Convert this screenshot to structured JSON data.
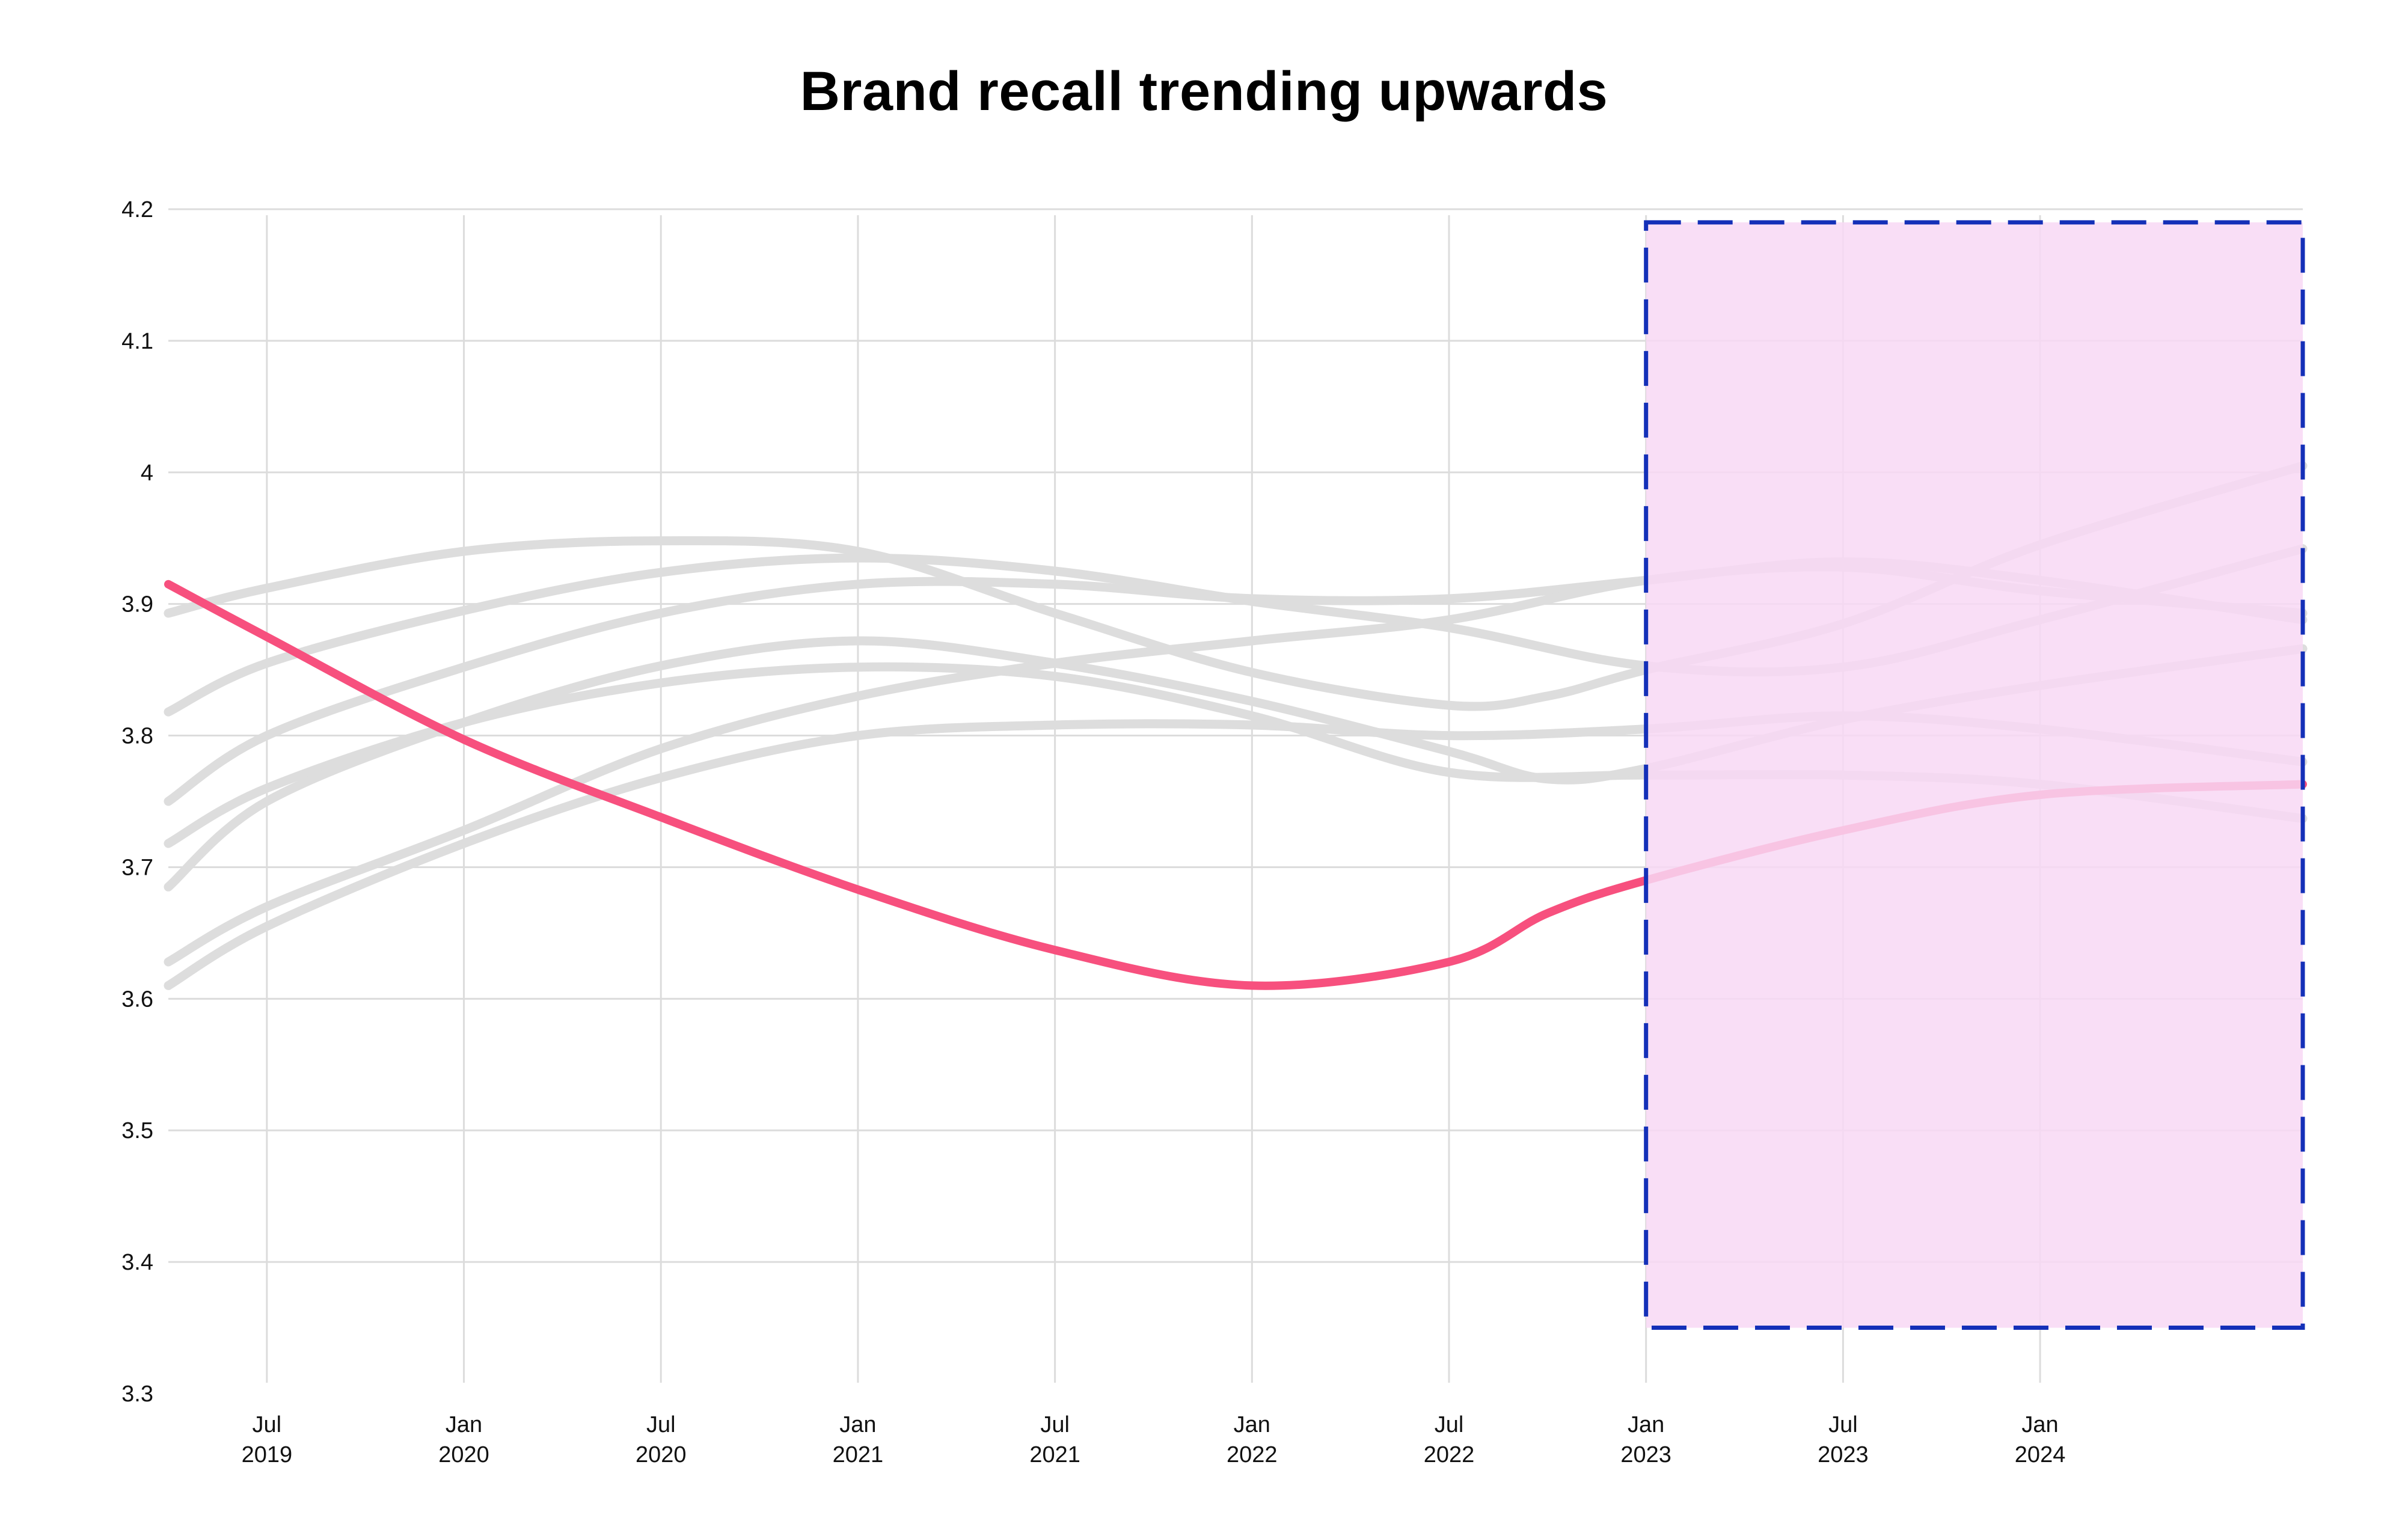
{
  "chart_data": {
    "type": "line",
    "title": "Brand recall trending upwards",
    "xlabel": "",
    "ylabel": "",
    "ylim": [
      3.3,
      4.2
    ],
    "y_ticks": [
      "3.3",
      "3.4",
      "3.5",
      "3.6",
      "3.7",
      "3.8",
      "3.9",
      "4",
      "4.1",
      "4.2"
    ],
    "y_tick_values": [
      3.3,
      3.4,
      3.5,
      3.6,
      3.7,
      3.8,
      3.9,
      4.0,
      4.1,
      4.2
    ],
    "x_range": [
      "2019-04",
      "2024-09"
    ],
    "x_ticks": [
      {
        "date": "2019-07",
        "month": "Jul",
        "year": "2019"
      },
      {
        "date": "2020-01",
        "month": "Jan",
        "year": "2020"
      },
      {
        "date": "2020-07",
        "month": "Jul",
        "year": "2020"
      },
      {
        "date": "2021-01",
        "month": "Jan",
        "year": "2021"
      },
      {
        "date": "2021-07",
        "month": "Jul",
        "year": "2021"
      },
      {
        "date": "2022-01",
        "month": "Jan",
        "year": "2022"
      },
      {
        "date": "2022-07",
        "month": "Jul",
        "year": "2022"
      },
      {
        "date": "2023-01",
        "month": "Jan",
        "year": "2023"
      },
      {
        "date": "2023-07",
        "month": "Jul",
        "year": "2023"
      },
      {
        "date": "2024-01",
        "month": "Jan",
        "year": "2024"
      }
    ],
    "grid": true,
    "legend": "none",
    "series": [
      {
        "highlighted": true,
        "color": "#f7507e",
        "points": [
          [
            "2019-04",
            3.915
          ],
          [
            "2019-07",
            3.875
          ],
          [
            "2020-01",
            3.797
          ],
          [
            "2020-07",
            3.738
          ],
          [
            "2021-01",
            3.683
          ],
          [
            "2021-07",
            3.637
          ],
          [
            "2022-01",
            3.61
          ],
          [
            "2022-07",
            3.628
          ],
          [
            "2022-10",
            3.665
          ],
          [
            "2023-01",
            3.69
          ],
          [
            "2023-07",
            3.728
          ],
          [
            "2024-01",
            3.755
          ],
          [
            "2024-09",
            3.763
          ]
        ]
      },
      {
        "color": "#dddddd",
        "points": [
          [
            "2019-04",
            3.893
          ],
          [
            "2019-07",
            3.912
          ],
          [
            "2020-01",
            3.94
          ],
          [
            "2020-07",
            3.948
          ],
          [
            "2021-01",
            3.94
          ],
          [
            "2021-07",
            3.893
          ],
          [
            "2022-01",
            3.848
          ],
          [
            "2022-07",
            3.823
          ],
          [
            "2022-10",
            3.83
          ],
          [
            "2023-01",
            3.85
          ],
          [
            "2023-07",
            3.885
          ],
          [
            "2024-01",
            3.945
          ],
          [
            "2024-09",
            4.005
          ]
        ]
      },
      {
        "color": "#dddddd",
        "points": [
          [
            "2019-04",
            3.818
          ],
          [
            "2019-07",
            3.855
          ],
          [
            "2020-01",
            3.895
          ],
          [
            "2020-07",
            3.924
          ],
          [
            "2021-01",
            3.935
          ],
          [
            "2021-07",
            3.925
          ],
          [
            "2022-01",
            3.902
          ],
          [
            "2022-07",
            3.882
          ],
          [
            "2023-01",
            3.853
          ],
          [
            "2023-07",
            3.852
          ],
          [
            "2024-01",
            3.888
          ],
          [
            "2024-09",
            3.942
          ]
        ]
      },
      {
        "color": "#dddddd",
        "points": [
          [
            "2019-04",
            3.75
          ],
          [
            "2019-07",
            3.8
          ],
          [
            "2020-01",
            3.852
          ],
          [
            "2020-07",
            3.893
          ],
          [
            "2021-01",
            3.915
          ],
          [
            "2021-07",
            3.915
          ],
          [
            "2022-01",
            3.904
          ],
          [
            "2022-07",
            3.904
          ],
          [
            "2023-01",
            3.918
          ],
          [
            "2023-07",
            3.932
          ],
          [
            "2024-01",
            3.918
          ],
          [
            "2024-09",
            3.888
          ]
        ]
      },
      {
        "color": "#dddddd",
        "points": [
          [
            "2019-04",
            3.718
          ],
          [
            "2019-07",
            3.76
          ],
          [
            "2020-01",
            3.81
          ],
          [
            "2020-07",
            3.84
          ],
          [
            "2021-01",
            3.852
          ],
          [
            "2021-07",
            3.845
          ],
          [
            "2022-01",
            3.815
          ],
          [
            "2022-07",
            3.772
          ],
          [
            "2023-01",
            3.77
          ],
          [
            "2023-07",
            3.77
          ],
          [
            "2024-01",
            3.763
          ],
          [
            "2024-09",
            3.737
          ]
        ]
      },
      {
        "color": "#dddddd",
        "points": [
          [
            "2019-04",
            3.685
          ],
          [
            "2019-07",
            3.75
          ],
          [
            "2020-01",
            3.81
          ],
          [
            "2020-07",
            3.853
          ],
          [
            "2021-01",
            3.872
          ],
          [
            "2021-07",
            3.855
          ],
          [
            "2022-01",
            3.826
          ],
          [
            "2022-07",
            3.788
          ],
          [
            "2022-10",
            3.767
          ],
          [
            "2023-01",
            3.775
          ],
          [
            "2023-07",
            3.812
          ],
          [
            "2024-01",
            3.838
          ],
          [
            "2024-09",
            3.866
          ]
        ]
      },
      {
        "color": "#dddddd",
        "points": [
          [
            "2019-04",
            3.628
          ],
          [
            "2019-07",
            3.67
          ],
          [
            "2020-01",
            3.728
          ],
          [
            "2020-07",
            3.79
          ],
          [
            "2021-01",
            3.83
          ],
          [
            "2021-07",
            3.855
          ],
          [
            "2022-01",
            3.872
          ],
          [
            "2022-07",
            3.888
          ],
          [
            "2023-01",
            3.918
          ],
          [
            "2023-07",
            3.928
          ],
          [
            "2024-01",
            3.91
          ],
          [
            "2024-09",
            3.893
          ]
        ]
      },
      {
        "color": "#dddddd",
        "points": [
          [
            "2019-04",
            3.61
          ],
          [
            "2019-07",
            3.655
          ],
          [
            "2020-01",
            3.718
          ],
          [
            "2020-07",
            3.768
          ],
          [
            "2021-01",
            3.8
          ],
          [
            "2021-07",
            3.808
          ],
          [
            "2022-01",
            3.808
          ],
          [
            "2022-07",
            3.8
          ],
          [
            "2023-01",
            3.805
          ],
          [
            "2023-07",
            3.815
          ],
          [
            "2024-01",
            3.805
          ],
          [
            "2024-09",
            3.78
          ]
        ]
      }
    ],
    "highlight_region": {
      "x_start": "2023-01",
      "x_end": "2024-09",
      "y_start": 3.35,
      "y_end": 4.19,
      "fill": "#f8d8f5",
      "border": "#1430b8"
    }
  }
}
